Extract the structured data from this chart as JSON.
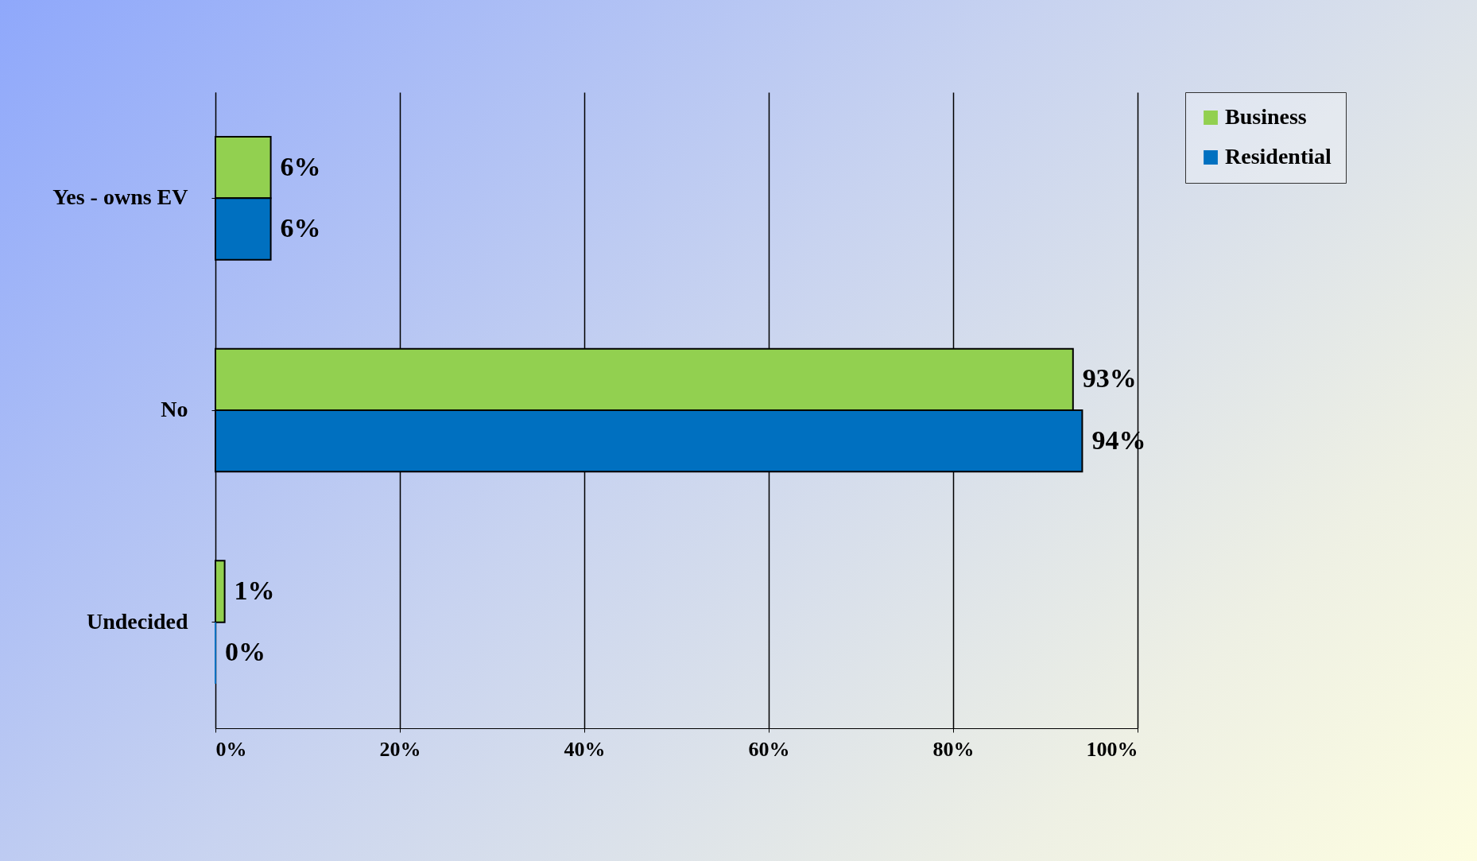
{
  "chart_data": {
    "type": "bar",
    "orientation": "horizontal",
    "categories": [
      "Yes - owns EV",
      "No",
      "Undecided"
    ],
    "series": [
      {
        "name": "Business",
        "color": "#92d050",
        "values": [
          6,
          93,
          1
        ],
        "value_labels": [
          "6%",
          "93%",
          "1%"
        ]
      },
      {
        "name": "Residential",
        "color": "#0070c0",
        "values": [
          6,
          94,
          0
        ],
        "value_labels": [
          "6%",
          "94%",
          "0%"
        ]
      }
    ],
    "xlim": [
      0,
      100
    ],
    "xticks": [
      {
        "value": 0,
        "label": "0%"
      },
      {
        "value": 20,
        "label": "20%"
      },
      {
        "value": 40,
        "label": "40%"
      },
      {
        "value": 60,
        "label": "60%"
      },
      {
        "value": 80,
        "label": "80%"
      },
      {
        "value": 100,
        "label": "100%"
      }
    ],
    "grid": "x",
    "legend": "top right"
  }
}
